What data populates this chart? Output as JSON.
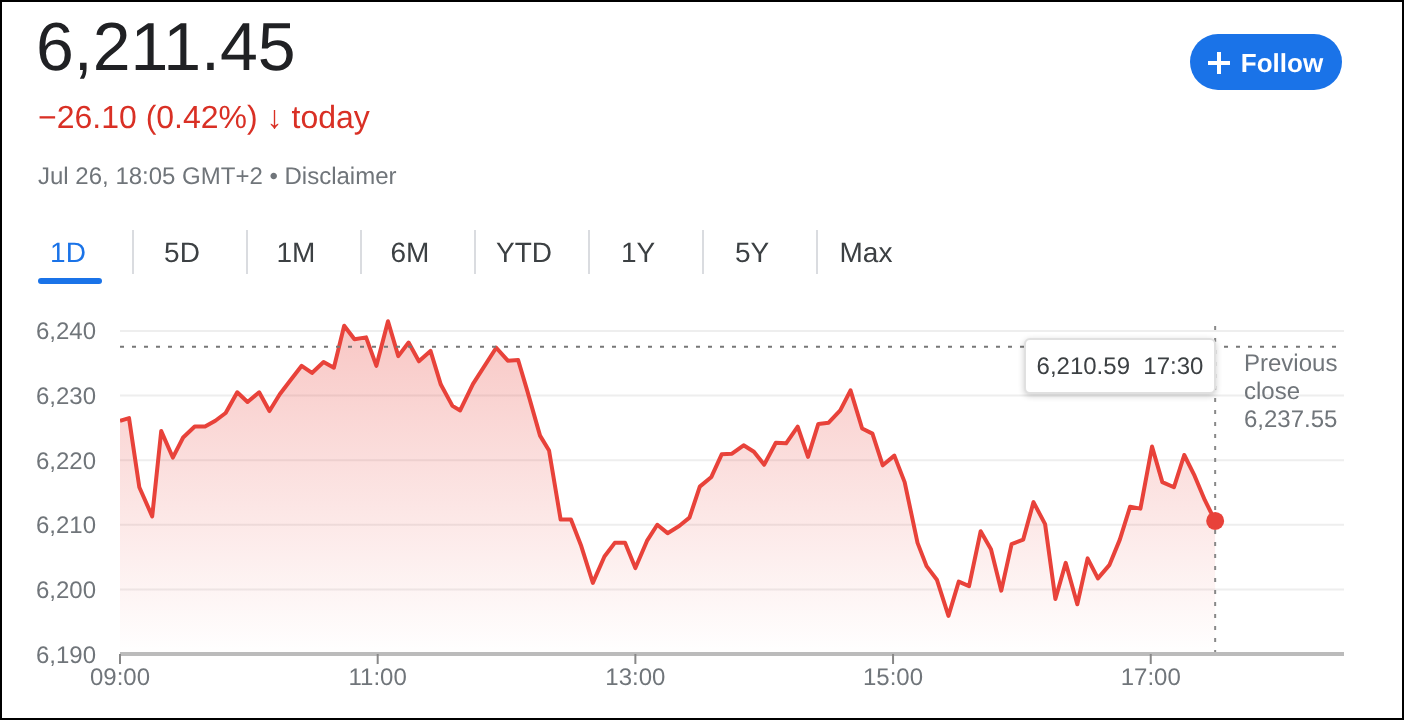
{
  "chart_data": {
    "type": "area",
    "title": "6,211.45",
    "subtitle": "−26.10 (0.42%) ↓ today",
    "annotations": [
      "Jul 26, 18:05 GMT+2 • Disclaimer",
      "1D",
      "5D",
      "1M",
      "6M",
      "YTD",
      "1Y",
      "5Y",
      "Max",
      "Follow",
      "6,210.59  17:30"
    ],
    "x": [
      9.0,
      9.07,
      9.15,
      9.25,
      9.32,
      9.41,
      9.49,
      9.58,
      9.66,
      9.74,
      9.82,
      9.91,
      9.99,
      10.08,
      10.16,
      10.24,
      10.32,
      10.41,
      10.49,
      10.58,
      10.66,
      10.74,
      10.82,
      10.91,
      10.99,
      11.08,
      11.16,
      11.24,
      11.32,
      11.41,
      11.49,
      11.58,
      11.64,
      11.74,
      11.92,
      12.01,
      12.09,
      12.16,
      12.26,
      12.33,
      12.42,
      12.5,
      12.58,
      12.67,
      12.76,
      12.84,
      12.92,
      13.0,
      13.09,
      13.17,
      13.25,
      13.34,
      13.42,
      13.5,
      13.59,
      13.67,
      13.75,
      13.84,
      13.92,
      14.0,
      14.09,
      14.17,
      14.26,
      14.34,
      14.42,
      14.5,
      14.59,
      14.67,
      14.76,
      14.84,
      14.92,
      15.01,
      15.09,
      15.19,
      15.26,
      15.34,
      15.43,
      15.51,
      15.59,
      15.68,
      15.76,
      15.84,
      15.92,
      16.01,
      16.09,
      16.18,
      16.26,
      16.34,
      16.43,
      16.51,
      16.59,
      16.68,
      16.76,
      16.84,
      16.92,
      17.01,
      17.09,
      17.18,
      17.26,
      17.34,
      17.42,
      17.5
    ],
    "series": [
      {
        "color": "#e8423a",
        "values": [
          6226.1,
          6226.5,
          6215.8,
          6211.3,
          6224.5,
          6220.4,
          6223.5,
          6225.2,
          6225.2,
          6226.1,
          6227.3,
          6230.5,
          6229.0,
          6230.5,
          6227.6,
          6230.2,
          6232.3,
          6234.6,
          6233.5,
          6235.2,
          6234.3,
          6240.8,
          6238.7,
          6239.0,
          6234.6,
          6241.5,
          6236.1,
          6238.2,
          6235.3,
          6236.9,
          6231.7,
          6228.4,
          6227.7,
          6231.8,
          6237.4,
          6235.4,
          6235.5,
          6230.8,
          6223.8,
          6221.5,
          6210.8,
          6210.8,
          6206.7,
          6201.0,
          6205.1,
          6207.2,
          6207.2,
          6203.3,
          6207.5,
          6210.0,
          6208.7,
          6209.8,
          6211.1,
          6215.9,
          6217.4,
          6220.9,
          6221.0,
          6222.3,
          6221.3,
          6219.3,
          6222.7,
          6222.6,
          6225.2,
          6220.5,
          6225.6,
          6225.8,
          6227.7,
          6230.8,
          6224.9,
          6224.1,
          6219.2,
          6220.7,
          6216.6,
          6207.2,
          6203.6,
          6201.5,
          6195.9,
          6201.2,
          6200.5,
          6209.0,
          6206.2,
          6199.8,
          6207.0,
          6207.7,
          6213.5,
          6210.1,
          6198.5,
          6204.1,
          6197.7,
          6204.8,
          6201.7,
          6203.8,
          6207.7,
          6212.8,
          6212.5,
          6222.1,
          6216.6,
          6215.8,
          6220.8,
          6217.6,
          6213.8,
          6210.6
        ]
      }
    ],
    "xlim": [
      9,
      18.5
    ],
    "xticks": [
      {
        "value": 9,
        "label": "09:00"
      },
      {
        "value": 11,
        "label": "11:00"
      },
      {
        "value": 13,
        "label": "13:00"
      },
      {
        "value": 15,
        "label": "15:00"
      },
      {
        "value": 17,
        "label": "17:00"
      }
    ],
    "ylim": [
      6190,
      6242
    ],
    "yticks": [
      {
        "value": 6190,
        "label": "6,190"
      },
      {
        "value": 6200,
        "label": "6,200"
      },
      {
        "value": 6210,
        "label": "6,210"
      },
      {
        "value": 6220,
        "label": "6,220"
      },
      {
        "value": 6230,
        "label": "6,230"
      },
      {
        "value": 6240,
        "label": "6,240"
      }
    ],
    "ref_lines": [
      {
        "axis": "y",
        "value": 6237.55,
        "label": "Previous close 6,237.55",
        "line_style": "dotted",
        "color": "#777777"
      },
      {
        "axis": "x",
        "value": 17.5,
        "label": null,
        "line_style": "dotted",
        "color": "#888888"
      }
    ],
    "grid": "y",
    "legend": false,
    "marker": "none",
    "line_style": "solid"
  }
}
